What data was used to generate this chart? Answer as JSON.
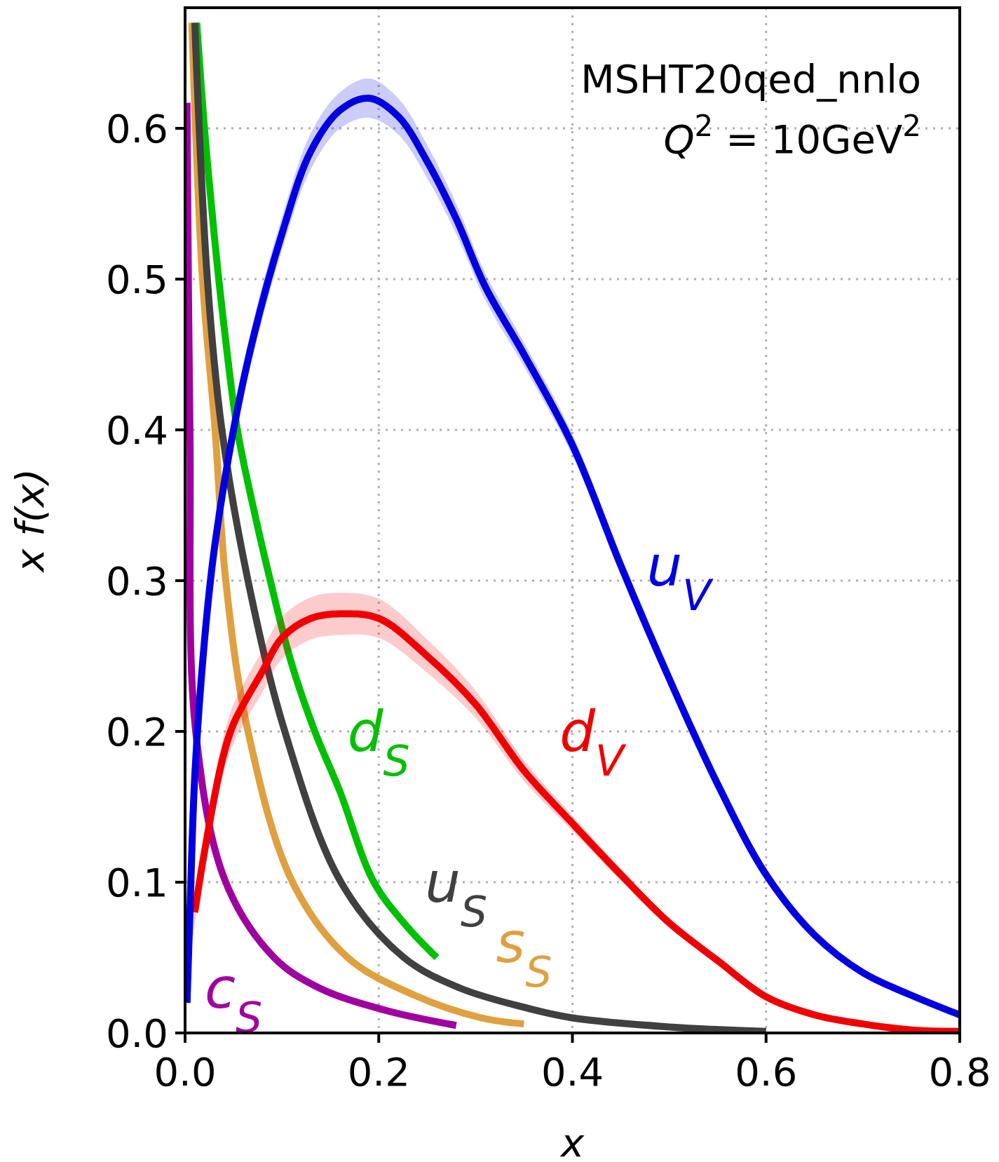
{
  "chart_data": {
    "type": "line",
    "title": "MSHT20qed_nnlo",
    "subtitle": "Q$^{2}$ = 10GeV$^{2}$",
    "xlabel": "x",
    "ylabel": "x f(x)",
    "xlim": [
      0,
      0.8
    ],
    "ylim": [
      0,
      0.68
    ],
    "xticks": [
      {
        "value": 0,
        "label": "0.0"
      },
      0.2,
      0.4,
      0.6,
      0.8
    ],
    "yticks": [
      {
        "value": 0,
        "label": "0.0"
      },
      0.1,
      0.2,
      0.3,
      0.4,
      0.5,
      0.6
    ],
    "grid": true,
    "line_style": "solid",
    "marker": "none",
    "legend": false,
    "series": [
      {
        "name": "c$_{S}$",
        "color": "#a000a0",
        "x": [
          0.002,
          0.005,
          0.011,
          0.042,
          0.092,
          0.138,
          0.207,
          0.28
        ],
        "values": [
          0.617,
          0.4,
          0.2,
          0.1,
          0.05,
          0.03,
          0.015,
          0.005
        ]
      },
      {
        "name": "s$_{S}$",
        "color": "#e0a040",
        "x": [
          0.007,
          0.018,
          0.031,
          0.042,
          0.065,
          0.111,
          0.168,
          0.237,
          0.306,
          0.35
        ],
        "values": [
          0.67,
          0.5,
          0.4,
          0.3,
          0.2,
          0.1,
          0.05,
          0.025,
          0.01,
          0.006
        ]
      },
      {
        "name": "d$_{S}$",
        "color": "#00c000",
        "x": [
          0.012,
          0.02,
          0.03,
          0.04,
          0.054,
          0.07,
          0.088,
          0.11,
          0.134,
          0.16,
          0.195,
          0.23,
          0.26
        ],
        "values": [
          0.67,
          0.6,
          0.53,
          0.47,
          0.4,
          0.35,
          0.3,
          0.245,
          0.2,
          0.16,
          0.1,
          0.07,
          0.05
        ]
      },
      {
        "name": "u$_{S}$",
        "color": "#404040",
        "x": [
          0.01,
          0.023,
          0.038,
          0.065,
          0.103,
          0.161,
          0.226,
          0.283,
          0.35,
          0.4,
          0.5,
          0.6
        ],
        "values": [
          0.67,
          0.5,
          0.4,
          0.3,
          0.2,
          0.1,
          0.05,
          0.03,
          0.017,
          0.01,
          0.004,
          0.001
        ]
      },
      {
        "name": "d$_{V}$",
        "color": "#f00000",
        "x": [
          0.001,
          0.01,
          0.02,
          0.038,
          0.05,
          0.08,
          0.1,
          0.13,
          0.16,
          0.2,
          0.25,
          0.3,
          0.35,
          0.4,
          0.45,
          0.5,
          0.55,
          0.6,
          0.65,
          0.7,
          0.75,
          0.8
        ],
        "values": [
          null,
          0.08,
          0.12,
          0.18,
          0.205,
          0.24,
          0.262,
          0.275,
          0.278,
          0.275,
          0.25,
          0.218,
          0.174,
          0.139,
          0.105,
          0.073,
          0.048,
          0.024,
          0.012,
          0.006,
          0.002,
          0.001
        ],
        "lower": [
          0.03,
          0.072,
          0.11,
          0.168,
          0.192,
          0.226,
          0.248,
          0.261,
          0.264,
          0.262,
          0.239,
          0.209,
          0.167,
          0.134,
          0.101,
          0.07,
          0.046,
          0.022,
          0.011,
          0.005,
          0.001,
          0.0
        ],
        "upper": [
          0.042,
          0.088,
          0.13,
          0.192,
          0.218,
          0.254,
          0.276,
          0.289,
          0.292,
          0.288,
          0.261,
          0.227,
          0.181,
          0.144,
          0.109,
          0.076,
          0.05,
          0.026,
          0.013,
          0.007,
          0.003,
          0.002
        ]
      },
      {
        "name": "u$_{V}$",
        "color": "#0000e0",
        "x": [
          0.002,
          0.005,
          0.01,
          0.02,
          0.03,
          0.05,
          0.07,
          0.1,
          0.13,
          0.16,
          0.19,
          0.22,
          0.25,
          0.28,
          0.31,
          0.35,
          0.4,
          0.45,
          0.5,
          0.55,
          0.6,
          0.65,
          0.7,
          0.75,
          0.8
        ],
        "values": [
          0.02,
          0.08,
          0.17,
          0.26,
          0.32,
          0.4,
          0.46,
          0.53,
          0.585,
          0.612,
          0.62,
          0.608,
          0.578,
          0.54,
          0.495,
          0.45,
          0.39,
          0.31,
          0.235,
          0.165,
          0.105,
          0.065,
          0.04,
          0.025,
          0.012
        ],
        "lower": [
          0.015,
          0.074,
          0.162,
          0.251,
          0.31,
          0.39,
          0.449,
          0.519,
          0.573,
          0.6,
          0.607,
          0.596,
          0.567,
          0.53,
          0.486,
          0.442,
          0.383,
          0.304,
          0.23,
          0.161,
          0.102,
          0.063,
          0.038,
          0.024,
          0.011
        ],
        "upper": [
          0.025,
          0.086,
          0.178,
          0.269,
          0.33,
          0.41,
          0.471,
          0.541,
          0.597,
          0.624,
          0.633,
          0.62,
          0.589,
          0.55,
          0.504,
          0.458,
          0.397,
          0.316,
          0.24,
          0.169,
          0.108,
          0.067,
          0.042,
          0.026,
          0.013
        ]
      }
    ]
  }
}
